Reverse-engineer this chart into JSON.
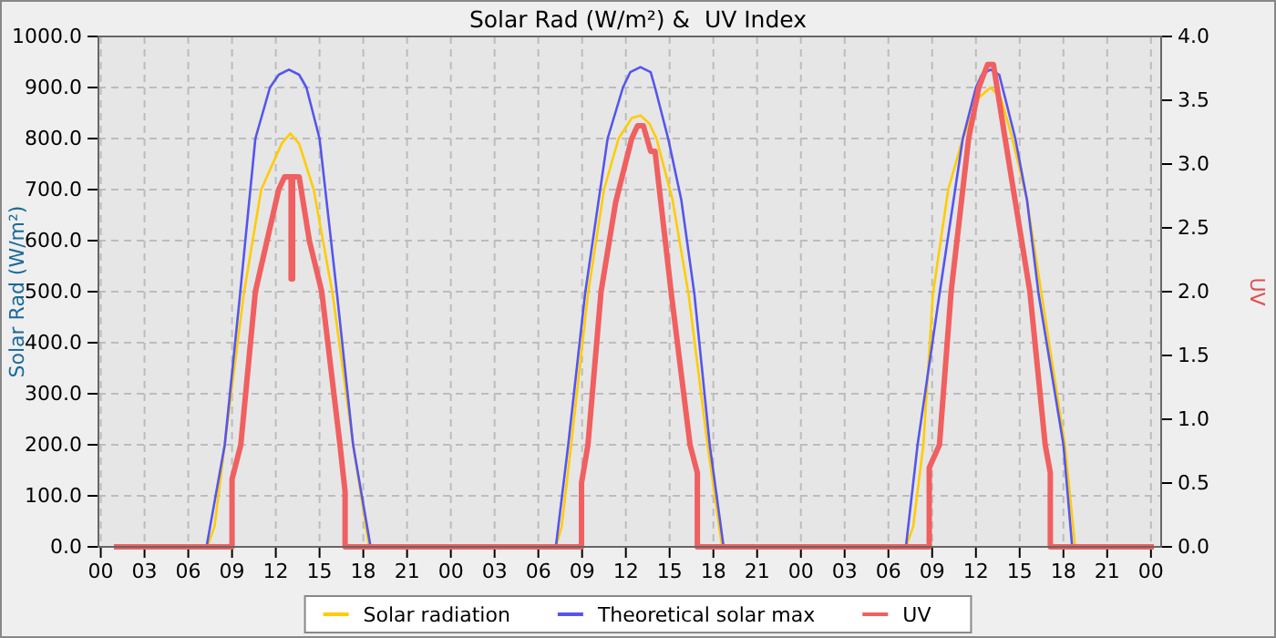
{
  "chart_data": {
    "type": "line",
    "title": "Solar Rad (W/m²) &  UV Index",
    "ylabel": "Solar Rad (W/m²)",
    "y2label": "UV",
    "xlim": [
      -0.16,
      72.7
    ],
    "xticks": [
      {
        "value": 0,
        "label": "00"
      },
      {
        "value": 3,
        "label": "03"
      },
      {
        "value": 6,
        "label": "06"
      },
      {
        "value": 9,
        "label": "09"
      },
      {
        "value": 12,
        "label": "12"
      },
      {
        "value": 15,
        "label": "15"
      },
      {
        "value": 18,
        "label": "18"
      },
      {
        "value": 21,
        "label": "21"
      },
      {
        "value": 24,
        "label": "00"
      },
      {
        "value": 27,
        "label": "03"
      },
      {
        "value": 30,
        "label": "06"
      },
      {
        "value": 33,
        "label": "09"
      },
      {
        "value": 36,
        "label": "12"
      },
      {
        "value": 39,
        "label": "15"
      },
      {
        "value": 42,
        "label": "18"
      },
      {
        "value": 45,
        "label": "21"
      },
      {
        "value": 48,
        "label": "00"
      },
      {
        "value": 51,
        "label": "03"
      },
      {
        "value": 54,
        "label": "06"
      },
      {
        "value": 57,
        "label": "09"
      },
      {
        "value": 60,
        "label": "12"
      },
      {
        "value": 63,
        "label": "15"
      },
      {
        "value": 66,
        "label": "18"
      },
      {
        "value": 69,
        "label": "21"
      },
      {
        "value": 72,
        "label": "00"
      }
    ],
    "ylim": [
      0,
      1000
    ],
    "yticks": [
      {
        "value": 0,
        "label": "0.0"
      },
      {
        "value": 100,
        "label": "100.0"
      },
      {
        "value": 200,
        "label": "200.0"
      },
      {
        "value": 300,
        "label": "300.0"
      },
      {
        "value": 400,
        "label": "400.0"
      },
      {
        "value": 500,
        "label": "500.0"
      },
      {
        "value": 600,
        "label": "600.0"
      },
      {
        "value": 700,
        "label": "700.0"
      },
      {
        "value": 800,
        "label": "800.0"
      },
      {
        "value": 900,
        "label": "900.0"
      },
      {
        "value": 1000,
        "label": "1000.0"
      }
    ],
    "y2lim": [
      0,
      4
    ],
    "y2ticks": [
      {
        "value": 0,
        "label": "0.0"
      },
      {
        "value": 0.5,
        "label": "0.5"
      },
      {
        "value": 1,
        "label": "1.0"
      },
      {
        "value": 1.5,
        "label": "1.5"
      },
      {
        "value": 2,
        "label": "2.0"
      },
      {
        "value": 2.5,
        "label": "2.5"
      },
      {
        "value": 3,
        "label": "3.0"
      },
      {
        "value": 3.5,
        "label": "3.5"
      },
      {
        "value": 4,
        "label": "4.0"
      }
    ],
    "grid": true,
    "legend": "bottom",
    "series": [
      {
        "name": "Solar radiation",
        "color": "#ffcc00",
        "x": [
          0.9,
          7.3,
          7.8,
          8.5,
          9.8,
          11,
          12.4,
          13,
          13.6,
          14.6,
          15.9,
          17.3,
          18.4,
          31.2,
          31.6,
          32.25,
          33.4,
          34.5,
          35.5,
          36.4,
          37,
          37.6,
          38.1,
          39.2,
          40.3,
          41.6,
          42.6,
          55.2,
          55.7,
          56.4,
          57.05,
          58.1,
          59.1,
          60.2,
          61,
          61.7,
          62.5,
          63.5,
          64.5,
          66.1,
          66.8,
          72.2
        ],
        "values": [
          0,
          0,
          40,
          200,
          495,
          700,
          790,
          810,
          790,
          700,
          495,
          200,
          0,
          0,
          40,
          200,
          495,
          700,
          800,
          840,
          845,
          830,
          800,
          680,
          495,
          200,
          0,
          0,
          40,
          200,
          495,
          700,
          800,
          880,
          900,
          880,
          800,
          680,
          495,
          200,
          0,
          0
        ]
      },
      {
        "name": "Theoretical solar max",
        "color": "#5555ee",
        "x": [
          0.9,
          7.25,
          8.5,
          9.55,
          10.6,
          11.6,
          12.2,
          12.9,
          13.6,
          14.1,
          15,
          16.2,
          17.3,
          18.5,
          31.2,
          32.05,
          33.2,
          34.75,
          35.8,
          36.3,
          37,
          37.7,
          38,
          38.9,
          39.8,
          40.7,
          41.75,
          42.7,
          55.2,
          56,
          57.5,
          59.1,
          60,
          60.4,
          61,
          61.6,
          62,
          62.7,
          63.5,
          64.3,
          66,
          66.6,
          72.2
        ],
        "values": [
          0,
          0,
          200,
          495,
          800,
          900,
          925,
          935,
          925,
          900,
          800,
          495,
          200,
          0,
          0,
          200,
          495,
          800,
          900,
          930,
          940,
          930,
          900,
          800,
          680,
          495,
          200,
          0,
          0,
          200,
          495,
          800,
          900,
          925,
          935,
          925,
          880,
          800,
          680,
          495,
          200,
          0,
          0
        ]
      },
      {
        "name": "UV",
        "color": "#f06060",
        "axis": "y2",
        "x": [
          0.9,
          9,
          9,
          9.6,
          10.6,
          11.4,
          12.2,
          12.6,
          13.05,
          13.05,
          13.15,
          13.15,
          13.6,
          14.3,
          15.15,
          16.4,
          16.75,
          16.75,
          32.96,
          32.96,
          33.4,
          34.3,
          35.3,
          36.4,
          36.8,
          37.2,
          37.7,
          38,
          39.1,
          40.4,
          40.9,
          40.9,
          56.8,
          56.8,
          57.5,
          58.3,
          59.5,
          60.2,
          60.8,
          61.2,
          62,
          63.7,
          64.75,
          65.1,
          65.1,
          72.2
        ],
        "values": [
          0,
          0,
          0.53,
          0.8,
          2,
          2.4,
          2.8,
          2.9,
          2.9,
          2.1,
          2.1,
          2.9,
          2.9,
          2.4,
          2,
          0.8,
          0.43,
          0,
          0,
          0.5,
          0.8,
          2,
          2.7,
          3.2,
          3.3,
          3.3,
          3.1,
          3.1,
          2,
          0.8,
          0.58,
          0,
          0,
          0.62,
          0.8,
          2,
          3.2,
          3.6,
          3.78,
          3.78,
          3.2,
          2,
          0.8,
          0.58,
          0,
          0
        ]
      }
    ]
  }
}
